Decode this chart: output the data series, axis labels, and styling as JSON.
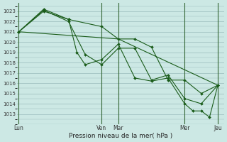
{
  "title": "",
  "xlabel": "Pression niveau de la mer( hPa )",
  "ylabel": "",
  "bg_color": "#cce8e4",
  "grid_color": "#99bbbb",
  "line_color": "#1a5c1a",
  "vline_color": "#336633",
  "ylim": [
    1012.2,
    1023.8
  ],
  "yticks": [
    1013,
    1014,
    1015,
    1016,
    1017,
    1018,
    1019,
    1020,
    1021,
    1022,
    1023
  ],
  "xlim": [
    -2,
    198
  ],
  "day_positions": [
    0,
    80,
    96,
    160,
    192
  ],
  "day_labels": [
    "Lun",
    "Ven",
    "Mar",
    "Mer",
    "Jeu"
  ],
  "series": [
    {
      "x": [
        0,
        96,
        192
      ],
      "y": [
        1021.0,
        1020.3,
        1015.8
      ],
      "marker": false
    },
    {
      "x": [
        0,
        24,
        48,
        80,
        96,
        112,
        128,
        144,
        160,
        176,
        192
      ],
      "y": [
        1021.0,
        1023.0,
        1022.2,
        1021.5,
        1020.3,
        1020.3,
        1019.5,
        1016.3,
        1016.3,
        1015.0,
        1015.8
      ],
      "marker": true
    },
    {
      "x": [
        0,
        24,
        48,
        64,
        80,
        96,
        112,
        128,
        144,
        160,
        176,
        192
      ],
      "y": [
        1021.0,
        1023.1,
        1022.0,
        1018.8,
        1017.8,
        1019.4,
        1019.4,
        1016.3,
        1016.8,
        1014.5,
        1014.0,
        1015.8
      ],
      "marker": true
    },
    {
      "x": [
        0,
        24,
        48,
        56,
        64,
        80,
        96,
        112,
        128,
        144,
        160,
        168,
        176,
        184,
        192
      ],
      "y": [
        1021.0,
        1023.2,
        1022.2,
        1019.0,
        1017.8,
        1018.3,
        1019.8,
        1016.5,
        1016.2,
        1016.5,
        1014.0,
        1013.3,
        1013.3,
        1012.7,
        1015.8
      ],
      "marker": true
    }
  ]
}
